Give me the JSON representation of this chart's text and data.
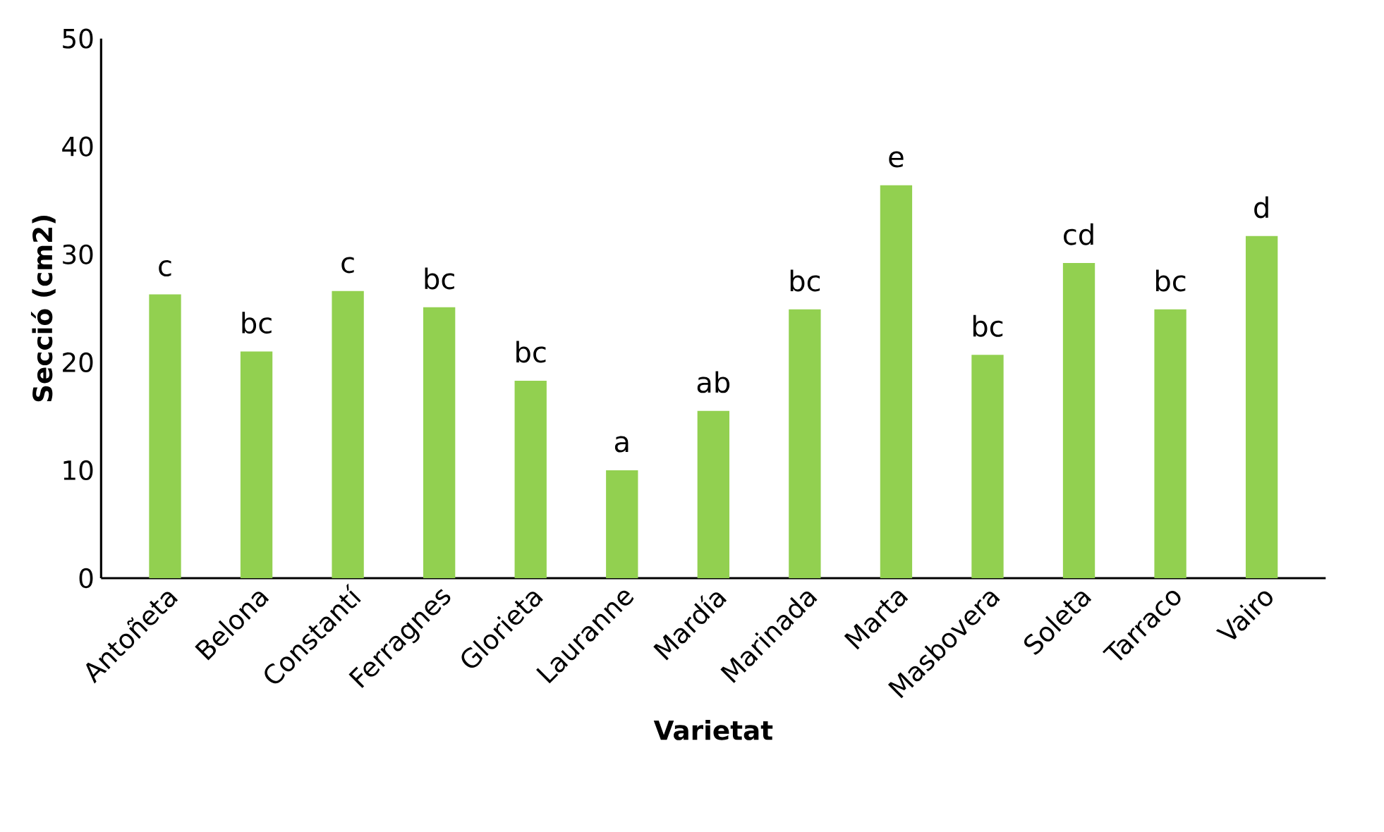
{
  "chart_data": {
    "type": "bar",
    "xlabel": "Varietat",
    "ylabel": "Secció (cm2)",
    "categories": [
      "Antoñeta",
      "Belona",
      "Constantí",
      "Ferragnes",
      "Glorieta",
      "Lauranne",
      "Mardía",
      "Marinada",
      "Marta",
      "Masbovera",
      "Soleta",
      "Tarraco",
      "Vairo"
    ],
    "values": [
      26.3,
      21.0,
      26.6,
      25.1,
      18.3,
      10.0,
      15.5,
      24.9,
      36.4,
      20.7,
      29.2,
      24.9,
      31.7
    ],
    "color": "#92d050",
    "ylim": [
      0,
      50
    ],
    "yticks": [
      0,
      10,
      20,
      30,
      40,
      50
    ],
    "annotations": [
      {
        "text": "c",
        "x": "Antoñeta",
        "y": 26.3
      },
      {
        "text": "bc",
        "x": "Belona",
        "y": 21.0
      },
      {
        "text": "c",
        "x": "Constantí",
        "y": 26.6
      },
      {
        "text": "bc",
        "x": "Ferragnes",
        "y": 25.1
      },
      {
        "text": "bc",
        "x": "Glorieta",
        "y": 18.3
      },
      {
        "text": "a",
        "x": "Lauranne",
        "y": 10.0
      },
      {
        "text": "ab",
        "x": "Mardía",
        "y": 15.5
      },
      {
        "text": "bc",
        "x": "Marinada",
        "y": 24.9
      },
      {
        "text": "e",
        "x": "Marta",
        "y": 36.4
      },
      {
        "text": "bc",
        "x": "Masbovera",
        "y": 20.7
      },
      {
        "text": "cd",
        "x": "Soleta",
        "y": 29.2
      },
      {
        "text": "bc",
        "x": "Tarraco",
        "y": 24.9
      },
      {
        "text": "d",
        "x": "Vairo",
        "y": 31.7
      }
    ]
  }
}
